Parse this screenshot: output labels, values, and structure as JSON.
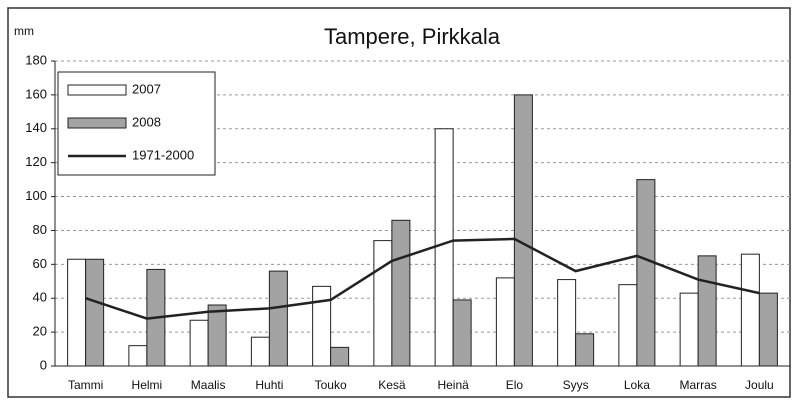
{
  "chart_data": {
    "type": "bar",
    "title": "Tampere, Pirkkala",
    "ylabel": "mm",
    "categories": [
      "Tammi",
      "Helmi",
      "Maalis",
      "Huhti",
      "Touko",
      "Kesä",
      "Heinä",
      "Elo",
      "Syys",
      "Loka",
      "Marras",
      "Joulu"
    ],
    "series": [
      {
        "name": "2007",
        "type": "bar",
        "color": "#ffffff",
        "values": [
          63,
          12,
          27,
          17,
          47,
          74,
          140,
          52,
          51,
          48,
          43,
          66
        ]
      },
      {
        "name": "2008",
        "type": "bar",
        "color": "#a3a3a3",
        "values": [
          63,
          57,
          36,
          56,
          11,
          86,
          39,
          160,
          19,
          110,
          65,
          43
        ]
      },
      {
        "name": "1971-2000",
        "type": "line",
        "color": "#222222",
        "values": [
          40,
          28,
          32,
          34,
          39,
          62,
          74,
          75,
          56,
          65,
          51,
          43
        ]
      }
    ],
    "ylim": [
      0,
      180
    ],
    "yticks": [
      0,
      20,
      40,
      60,
      80,
      100,
      120,
      140,
      160,
      180
    ],
    "grid": true,
    "legend": "top-left"
  }
}
